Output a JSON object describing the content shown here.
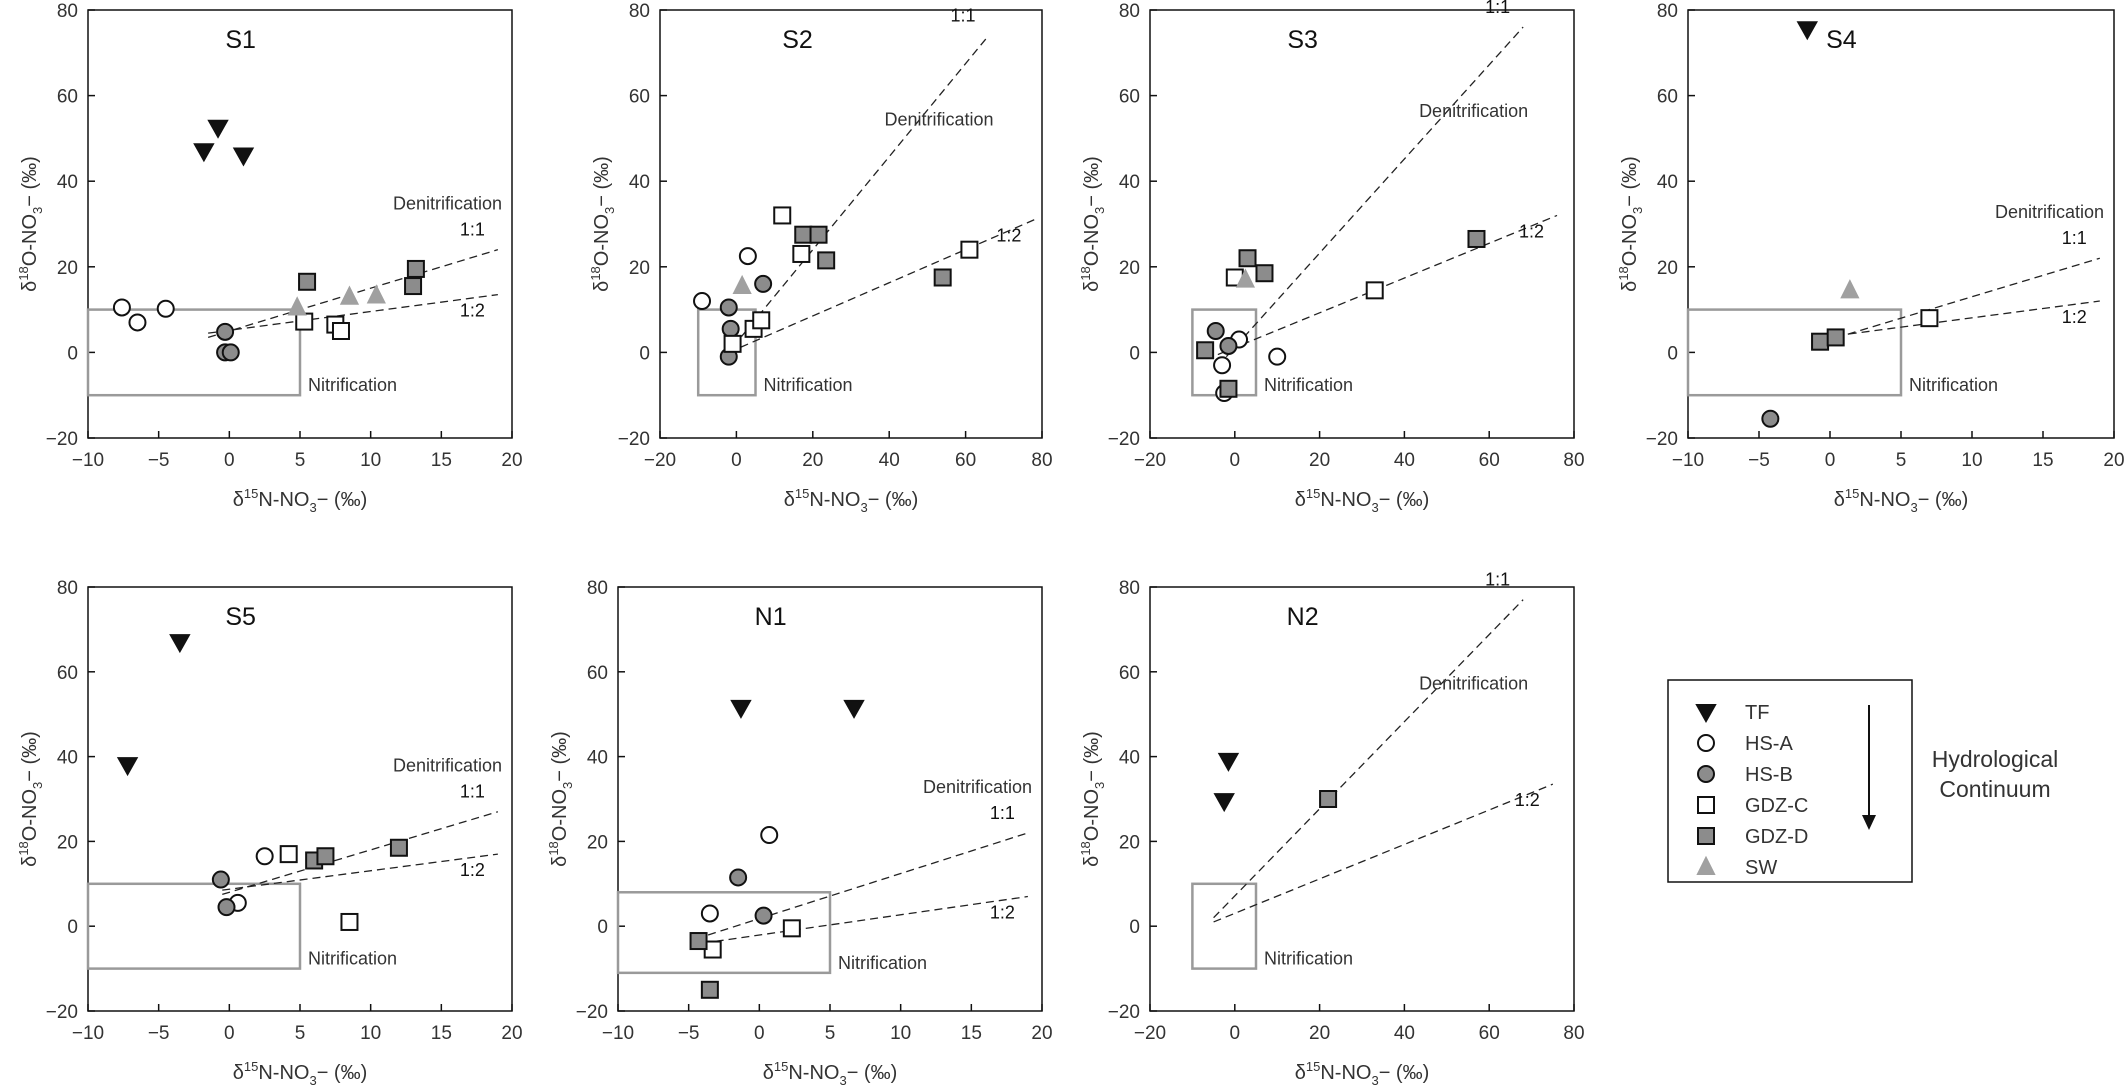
{
  "figure": {
    "x_label": {
      "pre": "δ",
      "sup": "15",
      "main": "N-NO",
      "sub": "3",
      "post": "− (‰)"
    },
    "y_label": {
      "pre": "δ",
      "sup": "18",
      "main": "O-NO",
      "sub": "3",
      "post": "− (‰)"
    },
    "arrow_label_1": "Hydrological",
    "arrow_label_2": "Continuum",
    "legend": [
      {
        "key": "TF",
        "label": "TF",
        "marker": "triangle-down",
        "fill": "#111111",
        "stroke": "#111111"
      },
      {
        "key": "HSA",
        "label": "HS-A",
        "marker": "circle",
        "fill": "#ffffff",
        "stroke": "#111111"
      },
      {
        "key": "HSB",
        "label": "HS-B",
        "marker": "circle",
        "fill": "#8c8c8c",
        "stroke": "#111111"
      },
      {
        "key": "GDZC",
        "label": "GDZ-C",
        "marker": "square",
        "fill": "#ffffff",
        "stroke": "#111111"
      },
      {
        "key": "GDZD",
        "label": "GDZ-D",
        "marker": "square",
        "fill": "#8c8c8c",
        "stroke": "#111111"
      },
      {
        "key": "SW",
        "label": "SW",
        "marker": "triangle-up",
        "fill": "#a0a0a0",
        "stroke": "#a0a0a0"
      }
    ],
    "colors": {
      "axis": "#111111",
      "box": "#9a9a9a",
      "text": "#333333"
    }
  },
  "chart_data": [
    {
      "type": "scatter",
      "title": "S1",
      "xlim": [
        -10,
        20
      ],
      "ylim": [
        -20,
        80
      ],
      "xticks": [
        -10,
        -5,
        0,
        5,
        10,
        15,
        20
      ],
      "yticks": [
        -20,
        0,
        20,
        40,
        60,
        80
      ],
      "nitrification_box": {
        "x": [
          -10,
          5
        ],
        "y": [
          -10,
          10
        ]
      },
      "lines": [
        {
          "label": "1:1",
          "from": [
            -1.5,
            3.5
          ],
          "to": [
            19,
            24
          ]
        },
        {
          "label": "1:2",
          "from": [
            -1.5,
            4.5
          ],
          "to": [
            19,
            13.5
          ]
        }
      ],
      "annotations": {
        "denitrification": "Denitrification",
        "nitrification": "Nitrification"
      },
      "series": [
        {
          "key": "TF",
          "points": [
            [
              -1.8,
              47
            ],
            [
              -0.8,
              52.5
            ],
            [
              1,
              46
            ]
          ]
        },
        {
          "key": "HSA",
          "points": [
            [
              -7.6,
              10.5
            ],
            [
              -6.5,
              7
            ],
            [
              -4.5,
              10.2
            ]
          ]
        },
        {
          "key": "HSB",
          "points": [
            [
              -0.3,
              4.8
            ],
            [
              -0.3,
              0
            ],
            [
              0.1,
              0
            ]
          ]
        },
        {
          "key": "GDZC",
          "points": [
            [
              5.3,
              7.2
            ],
            [
              7.5,
              6.5
            ],
            [
              7.9,
              5
            ]
          ]
        },
        {
          "key": "GDZD",
          "points": [
            [
              5.5,
              16.5
            ],
            [
              13,
              15.5
            ],
            [
              13.2,
              19.5
            ]
          ]
        },
        {
          "key": "SW",
          "points": [
            [
              4.8,
              10.5
            ],
            [
              8.5,
              13
            ],
            [
              10.4,
              13.3
            ]
          ]
        }
      ]
    },
    {
      "type": "scatter",
      "title": "S2",
      "xlim": [
        -20,
        80
      ],
      "ylim": [
        -20,
        80
      ],
      "xticks": [
        -20,
        0,
        20,
        40,
        60,
        80
      ],
      "yticks": [
        -20,
        0,
        20,
        40,
        60,
        80
      ],
      "nitrification_box": {
        "x": [
          -10,
          5
        ],
        "y": [
          -10,
          10
        ]
      },
      "lines": [
        {
          "label": "1:1",
          "from": [
            -3,
            -1
          ],
          "to": [
            66,
            74
          ]
        },
        {
          "label": "1:2",
          "from": [
            -2,
            0
          ],
          "to": [
            78,
            31
          ]
        }
      ],
      "annotations": {
        "denitrification": "Denitrification",
        "nitrification": "Nitrification"
      },
      "series": [
        {
          "key": "TF",
          "points": []
        },
        {
          "key": "HSA",
          "points": [
            [
              -9,
              12
            ],
            [
              3,
              22.5
            ]
          ]
        },
        {
          "key": "HSB",
          "points": [
            [
              -2,
              10.5
            ],
            [
              -1.5,
              5.5
            ],
            [
              -2,
              -1
            ],
            [
              7,
              16
            ]
          ]
        },
        {
          "key": "GDZC",
          "points": [
            [
              -1,
              2
            ],
            [
              4.5,
              5.5
            ],
            [
              6.5,
              7.5
            ],
            [
              12,
              32
            ],
            [
              17,
              23
            ],
            [
              61,
              24
            ]
          ]
        },
        {
          "key": "GDZD",
          "points": [
            [
              17.5,
              27.5
            ],
            [
              21.5,
              27.5
            ],
            [
              23.5,
              21.5
            ],
            [
              54,
              17.5
            ]
          ]
        },
        {
          "key": "SW",
          "points": [
            [
              1.5,
              15.5
            ]
          ]
        }
      ]
    },
    {
      "type": "scatter",
      "title": "S3",
      "xlim": [
        -20,
        80
      ],
      "ylim": [
        -20,
        80
      ],
      "xticks": [
        -20,
        0,
        20,
        40,
        60,
        80
      ],
      "yticks": [
        -20,
        0,
        20,
        40,
        60,
        80
      ],
      "nitrification_box": {
        "x": [
          -10,
          5
        ],
        "y": [
          -10,
          10
        ]
      },
      "lines": [
        {
          "label": "1:1",
          "from": [
            -2,
            -1
          ],
          "to": [
            68,
            76
          ]
        },
        {
          "label": "1:2",
          "from": [
            -4,
            -0.5
          ],
          "to": [
            76,
            32
          ]
        }
      ],
      "annotations": {
        "denitrification": "Denitrification",
        "nitrification": "Nitrification"
      },
      "series": [
        {
          "key": "TF",
          "points": []
        },
        {
          "key": "HSA",
          "points": [
            [
              -3,
              -3
            ],
            [
              -2.5,
              -9.5
            ],
            [
              1,
              3
            ],
            [
              10,
              -1
            ]
          ]
        },
        {
          "key": "HSB",
          "points": [
            [
              -4.5,
              5
            ],
            [
              -1.5,
              1.5
            ]
          ]
        },
        {
          "key": "GDZC",
          "points": [
            [
              0,
              17.5
            ],
            [
              33,
              14.5
            ]
          ]
        },
        {
          "key": "GDZD",
          "points": [
            [
              -7,
              0.5
            ],
            [
              3,
              22
            ],
            [
              7,
              18.5
            ],
            [
              -1.5,
              -8.5
            ],
            [
              57,
              26.5
            ]
          ]
        },
        {
          "key": "SW",
          "points": [
            [
              2.5,
              17
            ]
          ]
        }
      ]
    },
    {
      "type": "scatter",
      "title": "S4",
      "xlim": [
        -10,
        20
      ],
      "ylim": [
        -20,
        80
      ],
      "xticks": [
        -10,
        -5,
        0,
        5,
        10,
        15,
        20
      ],
      "yticks": [
        -20,
        0,
        20,
        40,
        60,
        80
      ],
      "nitrification_box": {
        "x": [
          -10,
          5
        ],
        "y": [
          -10,
          10
        ]
      },
      "lines": [
        {
          "label": "1:1",
          "from": [
            -0.5,
            2.5
          ],
          "to": [
            19,
            22
          ]
        },
        {
          "label": "1:2",
          "from": [
            -0.5,
            3.5
          ],
          "to": [
            19,
            12
          ]
        }
      ],
      "annotations": {
        "denitrification": "Denitrification",
        "nitrification": "Nitrification"
      },
      "series": [
        {
          "key": "TF",
          "points": [
            [
              -1.6,
              75.5
            ]
          ]
        },
        {
          "key": "HSA",
          "points": []
        },
        {
          "key": "HSB",
          "points": [
            [
              -4.2,
              -15.5
            ]
          ]
        },
        {
          "key": "GDZC",
          "points": [
            [
              7,
              8
            ]
          ]
        },
        {
          "key": "GDZD",
          "points": [
            [
              -0.7,
              2.5
            ],
            [
              0.4,
              3.5
            ]
          ]
        },
        {
          "key": "SW",
          "points": [
            [
              1.4,
              14.5
            ]
          ]
        }
      ]
    },
    {
      "type": "scatter",
      "title": "S5",
      "xlim": [
        -10,
        20
      ],
      "ylim": [
        -20,
        80
      ],
      "xticks": [
        -10,
        -5,
        0,
        5,
        10,
        15,
        20
      ],
      "yticks": [
        -20,
        0,
        20,
        40,
        60,
        80
      ],
      "nitrification_box": {
        "x": [
          -10,
          5
        ],
        "y": [
          -10,
          10
        ]
      },
      "lines": [
        {
          "label": "1:1",
          "from": [
            -0.5,
            7.5
          ],
          "to": [
            19,
            27
          ]
        },
        {
          "label": "1:2",
          "from": [
            -0.5,
            8.5
          ],
          "to": [
            19,
            17
          ]
        }
      ],
      "annotations": {
        "denitrification": "Denitrification",
        "nitrification": "Nitrification"
      },
      "series": [
        {
          "key": "TF",
          "points": [
            [
              -7.2,
              38
            ],
            [
              -3.5,
              67
            ]
          ]
        },
        {
          "key": "HSA",
          "points": [
            [
              0.6,
              5.5
            ],
            [
              2.5,
              16.5
            ]
          ]
        },
        {
          "key": "HSB",
          "points": [
            [
              -0.6,
              11
            ],
            [
              -0.2,
              4.5
            ]
          ]
        },
        {
          "key": "GDZC",
          "points": [
            [
              4.2,
              17
            ],
            [
              8.5,
              1
            ]
          ]
        },
        {
          "key": "GDZD",
          "points": [
            [
              6,
              15.5
            ],
            [
              6.8,
              16.5
            ],
            [
              12,
              18.5
            ]
          ]
        },
        {
          "key": "SW",
          "points": []
        }
      ]
    },
    {
      "type": "scatter",
      "title": "N1",
      "xlim": [
        -10,
        20
      ],
      "ylim": [
        -20,
        80
      ],
      "xticks": [
        -10,
        -5,
        0,
        5,
        10,
        15,
        20
      ],
      "yticks": [
        -20,
        0,
        20,
        40,
        60,
        80
      ],
      "nitrification_box": {
        "x": [
          -10,
          5
        ],
        "y": [
          -11,
          8
        ]
      },
      "lines": [
        {
          "label": "1:1",
          "from": [
            -4.5,
            -3
          ],
          "to": [
            19,
            22
          ]
        },
        {
          "label": "1:2",
          "from": [
            -4,
            -4
          ],
          "to": [
            19,
            7
          ]
        }
      ],
      "annotations": {
        "denitrification": "Denitrification",
        "nitrification": "Nitrification"
      },
      "series": [
        {
          "key": "TF",
          "points": [
            [
              -1.3,
              51.5
            ],
            [
              6.7,
              51.5
            ]
          ]
        },
        {
          "key": "HSA",
          "points": [
            [
              -3.5,
              3
            ],
            [
              0.7,
              21.5
            ]
          ]
        },
        {
          "key": "HSB",
          "points": [
            [
              -1.5,
              11.5
            ],
            [
              0.3,
              2.5
            ]
          ]
        },
        {
          "key": "GDZC",
          "points": [
            [
              -3.3,
              -5.5
            ],
            [
              2.3,
              -0.5
            ]
          ]
        },
        {
          "key": "GDZD",
          "points": [
            [
              -4.3,
              -3.5
            ],
            [
              -3.5,
              -15
            ]
          ]
        },
        {
          "key": "SW",
          "points": []
        }
      ]
    },
    {
      "type": "scatter",
      "title": "N2",
      "xlim": [
        -20,
        80
      ],
      "ylim": [
        -20,
        80
      ],
      "xticks": [
        -20,
        0,
        20,
        40,
        60,
        80
      ],
      "yticks": [
        -20,
        0,
        20,
        40,
        60,
        80
      ],
      "nitrification_box": {
        "x": [
          -10,
          5
        ],
        "y": [
          -10,
          10
        ]
      },
      "lines": [
        {
          "label": "1:1",
          "from": [
            -5,
            2
          ],
          "to": [
            68,
            77
          ]
        },
        {
          "label": "1:2",
          "from": [
            -5,
            1
          ],
          "to": [
            75,
            33.5
          ]
        }
      ],
      "annotations": {
        "denitrification": "Denitrification",
        "nitrification": "Nitrification"
      },
      "series": [
        {
          "key": "TF",
          "points": [
            [
              -1.5,
              39
            ],
            [
              -2.5,
              29.5
            ]
          ]
        },
        {
          "key": "HSA",
          "points": []
        },
        {
          "key": "HSB",
          "points": []
        },
        {
          "key": "GDZC",
          "points": []
        },
        {
          "key": "GDZD",
          "points": [
            [
              22,
              30
            ]
          ]
        },
        {
          "key": "SW",
          "points": []
        }
      ]
    }
  ]
}
